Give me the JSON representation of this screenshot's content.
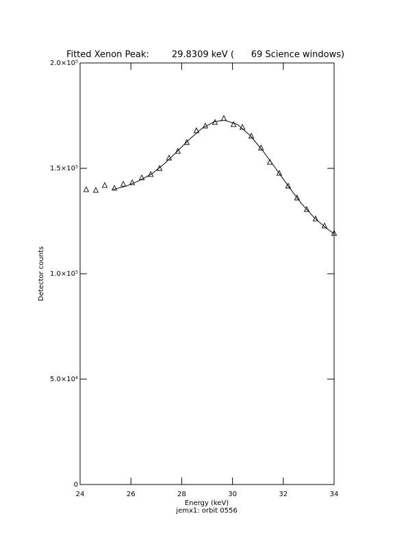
{
  "chart_data": {
    "type": "scatter",
    "title": "Fitted Xenon Peak:        29.8309 keV (      69 Science windows)",
    "xlabel": "Energy (keV)",
    "ylabel": "Detector counts",
    "footnote": "jemx1: orbit 0556",
    "xlim": [
      24,
      34
    ],
    "xticks": [
      24,
      26,
      28,
      30,
      32,
      34
    ],
    "ylim": [
      0,
      200000
    ],
    "yticks": [
      0,
      {
        "value": 50000,
        "label": "5.0×10⁴"
      },
      {
        "value": 100000,
        "label": "1.0×10⁵"
      },
      {
        "value": 150000,
        "label": "1.5×10⁵"
      },
      {
        "value": 200000,
        "label": "2.0×10⁵"
      }
    ],
    "series": [
      {
        "marker": "triangle",
        "color": "#000000",
        "x": [
          24.24,
          24.62,
          24.97,
          25.35,
          25.7,
          26.05,
          26.43,
          26.78,
          27.13,
          27.5,
          27.85,
          28.2,
          28.58,
          28.93,
          29.31,
          29.66,
          30.04,
          30.39,
          30.74,
          31.12,
          31.47,
          31.84,
          32.19,
          32.54,
          32.92,
          33.27,
          33.62,
          34.0
        ],
        "values": [
          139900,
          139600,
          141900,
          140600,
          142500,
          143200,
          145500,
          147100,
          150000,
          154900,
          158100,
          162300,
          167900,
          170100,
          171800,
          173700,
          170800,
          169500,
          165300,
          159700,
          152900,
          147700,
          141600,
          136000,
          130500,
          126000,
          122700,
          119200
        ]
      },
      {
        "marker": "line",
        "color": "#000000",
        "x": [
          25.3,
          25.8,
          26.3,
          26.8,
          27.3,
          27.8,
          28.3,
          28.8,
          29.3,
          29.7,
          30.2,
          30.7,
          31.2,
          31.7,
          32.2,
          32.7,
          33.2,
          33.7,
          34.0
        ],
        "values": [
          140000,
          141500,
          144000,
          147200,
          152000,
          157800,
          163700,
          169000,
          172200,
          172800,
          170800,
          165500,
          158200,
          150000,
          141500,
          133500,
          126800,
          121500,
          119000
        ]
      }
    ]
  }
}
